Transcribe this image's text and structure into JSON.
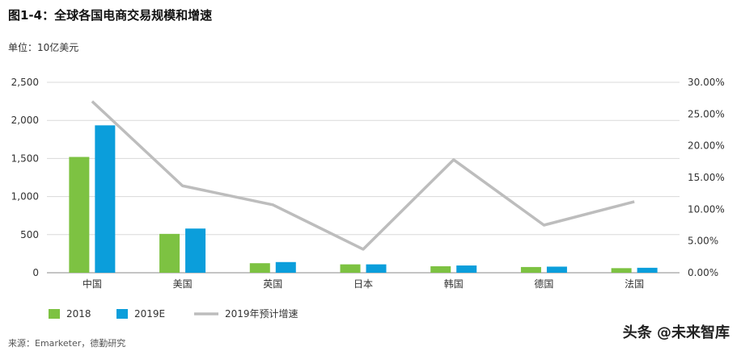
{
  "figure": {
    "title": "图1-4：全球各国电商交易规模和增速",
    "unit": "单位：10亿美元",
    "source": "来源：Emarketer，德勤研究",
    "watermark": "头条 @未来智库"
  },
  "chart_data": {
    "type": "bar",
    "categories": [
      "中国",
      "美国",
      "英国",
      "日本",
      "韩国",
      "德国",
      "法国"
    ],
    "series": [
      {
        "name": "2018",
        "type": "bar",
        "axis": "left",
        "color": "#7DC242",
        "values": [
          1520,
          510,
          125,
          110,
          85,
          75,
          60
        ]
      },
      {
        "name": "2019E",
        "type": "bar",
        "axis": "left",
        "color": "#0B9EDB",
        "values": [
          1935,
          580,
          140,
          110,
          95,
          80,
          65
        ]
      },
      {
        "name": "2019年预计增速",
        "type": "line",
        "axis": "right",
        "color": "#BDBDBD",
        "values": [
          0.27,
          0.137,
          0.107,
          0.037,
          0.178,
          0.075,
          0.112
        ]
      }
    ],
    "left_axis": {
      "min": 0,
      "max": 2500,
      "ticks": [
        "0",
        "500",
        "1,000",
        "1,500",
        "2,000",
        "2,500"
      ]
    },
    "right_axis": {
      "min": 0,
      "max": 0.3,
      "ticks": [
        "0.00%",
        "5.00%",
        "10.00%",
        "15.00%",
        "20.00%",
        "25.00%",
        "30.00%"
      ]
    },
    "grid": true,
    "legend_position": "bottom-left"
  }
}
